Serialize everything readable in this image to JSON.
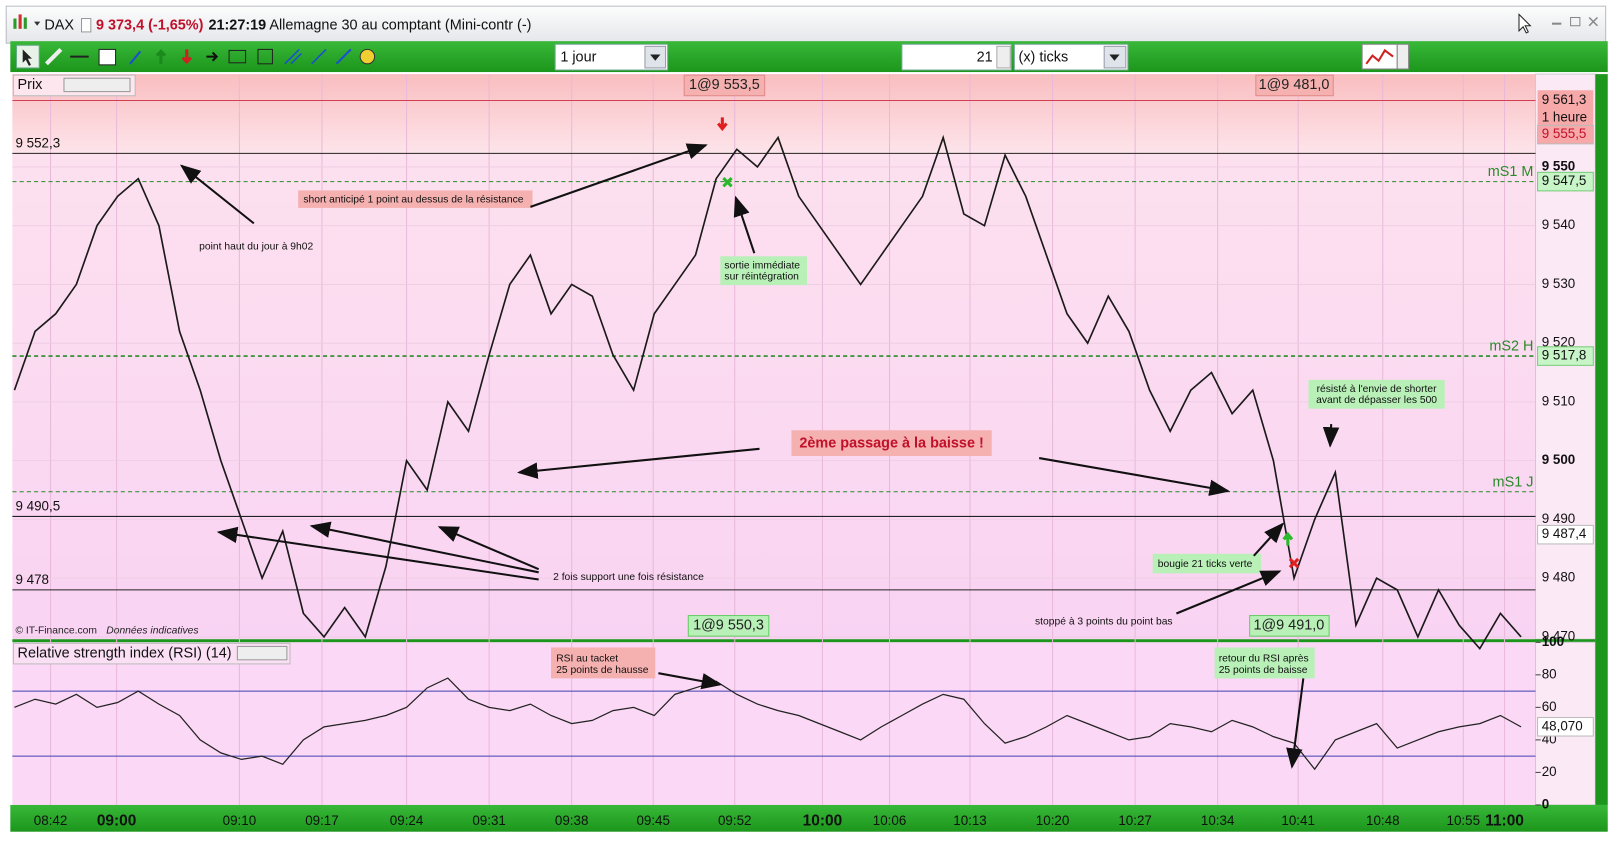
{
  "title_bar": {
    "symbol": "DAX",
    "quote": "9 373,4 (-1,65%)",
    "time": "21:27:19",
    "name": "Allemagne 30 au comptant (Mini-contr (-)"
  },
  "toolbar": {
    "period": "1 jour",
    "ticks_count": "21",
    "ticks_unit": "(x) ticks"
  },
  "price_panel": {
    "label": "Prix",
    "ylim": [
      9469.6,
      9565.8
    ],
    "yticks": [
      {
        "value": 9470,
        "label": "9 470"
      },
      {
        "value": 9480,
        "label": "9 480"
      },
      {
        "value": 9490,
        "label": "9 490"
      },
      {
        "value": 9500,
        "label": "9 500"
      },
      {
        "value": 9510,
        "label": "9 510"
      },
      {
        "value": 9520,
        "label": "9 520"
      },
      {
        "value": 9530,
        "label": "9 530"
      },
      {
        "value": 9540,
        "label": "9 540"
      },
      {
        "value": 9550,
        "label": "9 550"
      }
    ],
    "values": [
      9512,
      9522,
      9525,
      9530,
      9540,
      9545,
      9548,
      9540,
      9522,
      9512,
      9500,
      9490,
      9480,
      9488,
      9474,
      9470,
      9475,
      9470,
      9482,
      9500,
      9495,
      9510,
      9505,
      9518,
      9530,
      9535,
      9525,
      9530,
      9528,
      9518,
      9512,
      9525,
      9530,
      9535,
      9548,
      9553,
      9550,
      9555,
      9545,
      9540,
      9535,
      9530,
      9535,
      9540,
      9545,
      9555,
      9542,
      9540,
      9552,
      9545,
      9535,
      9525,
      9520,
      9528,
      9522,
      9512,
      9505,
      9512,
      9515,
      9508,
      9512,
      9500,
      9480,
      9490,
      9498,
      9472,
      9480,
      9478,
      9470,
      9478,
      9472,
      9468,
      9474,
      9470
    ],
    "color": "#1a1a1a",
    "levels": [
      {
        "value": 9552.3,
        "label": "9 552,3"
      },
      {
        "value": 9490.5,
        "label": "9 490,5"
      },
      {
        "value": 9478,
        "label": "9 478"
      }
    ],
    "pivots": [
      {
        "name": "mS1 M",
        "value": 9547.5,
        "label": "9 547,5"
      },
      {
        "name": "mS2 H",
        "value": 9517.8,
        "label": "9 517,8"
      },
      {
        "name": "mS1 J",
        "value": 9494.7
      }
    ],
    "upper_band": {
      "value": 9561.3,
      "label": "9 561,3",
      "name": "1 heure"
    },
    "marker_labels": [
      {
        "value": 9555.5,
        "label": "9 555,5"
      },
      {
        "value": 9487.4,
        "label": "9 487,4"
      }
    ],
    "copyright": "© IT-Finance.com",
    "disclaimer": "Données indicatives"
  },
  "rsi_panel": {
    "label": "Relative strength index (RSI) (14)",
    "ylim": [
      0,
      100
    ],
    "yticks": [
      0,
      20,
      40,
      60,
      80,
      100
    ],
    "bands": [
      30,
      70
    ],
    "values": [
      60,
      65,
      62,
      68,
      60,
      63,
      70,
      62,
      55,
      40,
      32,
      28,
      30,
      25,
      40,
      48,
      50,
      52,
      55,
      60,
      72,
      78,
      65,
      60,
      58,
      62,
      55,
      50,
      52,
      58,
      60,
      55,
      68,
      72,
      76,
      68,
      62,
      58,
      55,
      50,
      45,
      40,
      48,
      55,
      62,
      68,
      65,
      50,
      38,
      42,
      48,
      55,
      50,
      45,
      40,
      42,
      50,
      48,
      45,
      52,
      48,
      42,
      38,
      22,
      40,
      45,
      50,
      35,
      40,
      45,
      48,
      50,
      55,
      48
    ],
    "last": {
      "value": 48.07,
      "label": "48,070"
    }
  },
  "time_axis": {
    "labels": [
      "08:42",
      "09:00",
      "09:10",
      "09:17",
      "09:24",
      "09:31",
      "09:38",
      "09:45",
      "09:52",
      "10:00",
      "10:06",
      "10:13",
      "10:20",
      "10:27",
      "10:34",
      "10:41",
      "10:48",
      "10:55",
      "11:00"
    ]
  },
  "orders": [
    "1@9 553,5",
    "1@9 481,0",
    "1@9 550,3",
    "1@9 491,0"
  ],
  "annotations": {
    "short": "short anticipé 1 point au dessus de la résistance",
    "high": "point haut du jour à 9h02",
    "exit": [
      "sortie immédiate",
      "sur réintégration"
    ],
    "second_pass": "2ème passage à la baisse !",
    "support": "2 fois support une fois résistance",
    "resisted": [
      "résisté à l'envie de shorter",
      "avant de dépasser les 500"
    ],
    "candle": "bougie 21 ticks verte",
    "stopped": "stoppé à 3 points du point bas",
    "rsi_top": [
      "RSI au tacket",
      "25 points de hausse"
    ],
    "rsi_back": [
      "retour du RSI après",
      "25 points de baisse"
    ]
  }
}
